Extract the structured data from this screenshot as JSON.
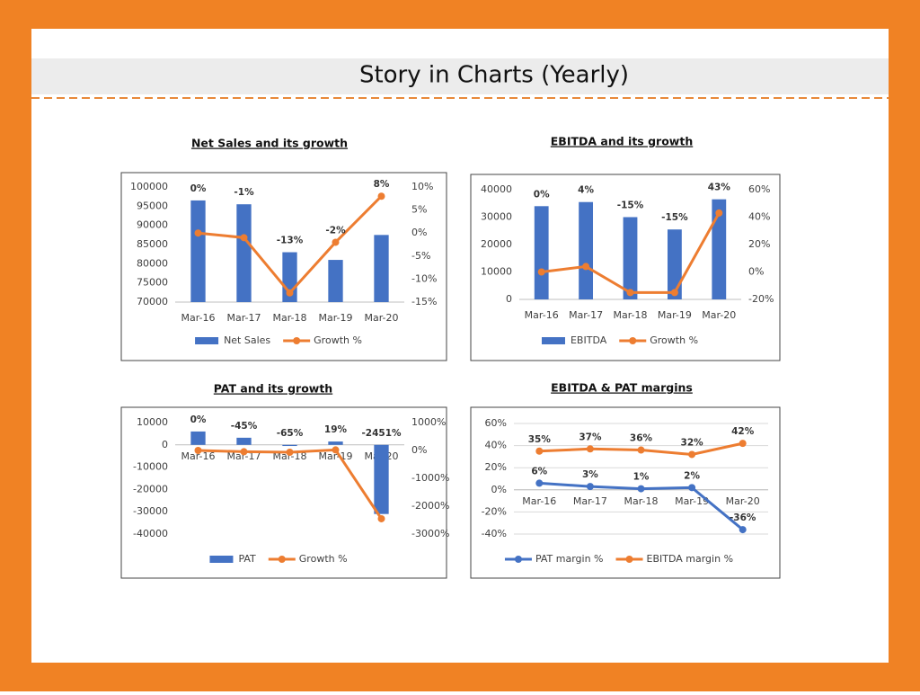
{
  "title": "Story in Charts (Yearly)",
  "chart_data": [
    {
      "type": "combo",
      "title": "Net Sales and its growth",
      "categories": [
        "Mar-16",
        "Mar-17",
        "Mar-18",
        "Mar-19",
        "Mar-20"
      ],
      "series": [
        {
          "name": "Net Sales",
          "color": "#4472c4",
          "values": [
            96500,
            95500,
            83000,
            81000,
            87500
          ]
        },
        {
          "name": "Growth %",
          "color": "#ed7d31",
          "axis": "y2",
          "values": [
            0,
            -1,
            -13,
            -2,
            8
          ],
          "value_labels": [
            "0%",
            "-1%",
            "-13%",
            "-2%",
            "8%"
          ]
        }
      ],
      "ylim": [
        70000,
        100000
      ],
      "yticks": [
        70000,
        75000,
        80000,
        85000,
        90000,
        95000,
        100000
      ],
      "y2lim": [
        -15,
        10
      ],
      "y2ticks": [
        {
          "value": -15,
          "label": "-15%"
        },
        {
          "value": -10,
          "label": "-10%"
        },
        {
          "value": -5,
          "label": "-5%"
        },
        {
          "value": 0,
          "label": "0%"
        },
        {
          "value": 5,
          "label": "5%"
        },
        {
          "value": 10,
          "label": "10%"
        }
      ],
      "grid": false
    },
    {
      "type": "combo",
      "title": "EBITDA and its growth",
      "categories": [
        "Mar-16",
        "Mar-17",
        "Mar-18",
        "Mar-19",
        "Mar-20"
      ],
      "series": [
        {
          "name": "EBITDA",
          "color": "#4472c4",
          "values": [
            34000,
            35500,
            30000,
            25500,
            36500
          ]
        },
        {
          "name": "Growth %",
          "color": "#ed7d31",
          "axis": "y2",
          "values": [
            0,
            4,
            -15,
            -15,
            43
          ],
          "value_labels": [
            "0%",
            "4%",
            "-15%",
            "-15%",
            "43%"
          ]
        }
      ],
      "ylim": [
        0,
        40000
      ],
      "yticks": [
        0,
        10000,
        20000,
        30000,
        40000
      ],
      "y2lim": [
        -20,
        60
      ],
      "y2ticks": [
        {
          "value": -20,
          "label": "-20%"
        },
        {
          "value": 0,
          "label": "0%"
        },
        {
          "value": 20,
          "label": "20%"
        },
        {
          "value": 40,
          "label": "40%"
        },
        {
          "value": 60,
          "label": "60%"
        }
      ],
      "grid": false
    },
    {
      "type": "combo",
      "title": "PAT and its growth",
      "categories": [
        "Mar-16",
        "Mar-17",
        "Mar-18",
        "Mar-19",
        "Mar-20"
      ],
      "series": [
        {
          "name": "PAT",
          "color": "#4472c4",
          "values": [
            6000,
            3200,
            -500,
            1500,
            -31000
          ]
        },
        {
          "name": "Growth %",
          "color": "#ed7d31",
          "axis": "y2",
          "values": [
            0,
            -45,
            -65,
            19,
            -2451
          ],
          "value_labels": [
            "0%",
            "-45%",
            "-65%",
            "19%",
            "-2451%"
          ]
        }
      ],
      "ylim": [
        -40000,
        10000
      ],
      "yticks": [
        -40000,
        -30000,
        -20000,
        -10000,
        0,
        10000
      ],
      "y2lim": [
        -3000,
        1000
      ],
      "y2ticks": [
        {
          "value": -3000,
          "label": "-3000%"
        },
        {
          "value": -2000,
          "label": "-2000%"
        },
        {
          "value": -1000,
          "label": "-1000%"
        },
        {
          "value": 0,
          "label": "0%"
        },
        {
          "value": 1000,
          "label": "1000%"
        }
      ],
      "grid": false
    },
    {
      "type": "line",
      "title": "EBITDA & PAT margins",
      "categories": [
        "Mar-16",
        "Mar-17",
        "Mar-18",
        "Mar-19",
        "Mar-20"
      ],
      "series": [
        {
          "name": "PAT margin %",
          "color": "#4472c4",
          "values": [
            6,
            3,
            1,
            2,
            -36
          ],
          "value_labels": [
            "6%",
            "3%",
            "1%",
            "2%",
            "-36%"
          ]
        },
        {
          "name": "EBITDA margin %",
          "color": "#ed7d31",
          "values": [
            35,
            37,
            36,
            32,
            42
          ],
          "value_labels": [
            "35%",
            "37%",
            "36%",
            "32%",
            "42%"
          ]
        }
      ],
      "ylim": [
        -40,
        60
      ],
      "yticks": [
        {
          "value": -40,
          "label": "-40%"
        },
        {
          "value": -20,
          "label": "-20%"
        },
        {
          "value": 0,
          "label": "0%"
        },
        {
          "value": 20,
          "label": "20%"
        },
        {
          "value": 40,
          "label": "40%"
        },
        {
          "value": 60,
          "label": "60%"
        }
      ],
      "grid": true
    }
  ]
}
